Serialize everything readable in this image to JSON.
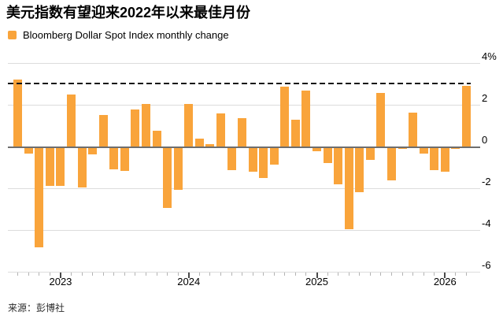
{
  "header": {
    "title": "美元指数有望迎来2022年以来最佳月份",
    "legend_label": "Bloomberg Dollar Spot Index monthly change"
  },
  "footer": {
    "source": "来源：彭博社"
  },
  "colors": {
    "bar": "#F9A43B",
    "grid": "#DCDCDC",
    "zero_line": "#6E6E6E",
    "reference_line": "#151515",
    "tick_minor": "#B3B3B3",
    "tick_major": "#4A4A4A",
    "text": "#000000"
  },
  "chart_data": {
    "type": "bar",
    "title": "美元指数有望迎来2022年以来最佳月份",
    "legend": [
      "Bloomberg Dollar Spot Index monthly change"
    ],
    "unit": "%",
    "grid": "horizontal",
    "legend_position": "top-left",
    "ylim": [
      -6.4,
      4.3
    ],
    "y_ticks": [
      {
        "label": "4%",
        "value": 4
      },
      {
        "label": "2",
        "value": 2
      },
      {
        "label": "0",
        "value": 0
      },
      {
        "label": "-2",
        "value": -2
      },
      {
        "label": "-4",
        "value": -4
      },
      {
        "label": "-6",
        "value": -6
      }
    ],
    "x_tick_labels": [
      "2023",
      "2024",
      "2025",
      "2026"
    ],
    "reference_line": {
      "style": "dashed",
      "value": 3.05
    },
    "x": [
      "2022-09",
      "2022-10",
      "2022-11",
      "2022-12",
      "2023-01",
      "2023-02",
      "2023-03",
      "2023-04",
      "2023-05",
      "2023-06",
      "2023-07",
      "2023-08",
      "2023-09",
      "2023-10",
      "2023-11",
      "2023-12",
      "2024-01",
      "2024-02",
      "2024-03",
      "2024-04",
      "2024-05",
      "2024-06",
      "2024-07",
      "2024-08",
      "2024-09",
      "2024-10",
      "2024-11",
      "2024-12",
      "2025-01",
      "2025-02",
      "2025-03",
      "2025-04",
      "2025-05",
      "2025-06",
      "2025-07",
      "2025-08",
      "2025-09",
      "2025-10",
      "2025-11",
      "2025-12",
      "2026-01",
      "2026-02",
      "2026-03"
    ],
    "values": [
      3.25,
      -0.3,
      -4.8,
      -1.85,
      -1.85,
      2.5,
      -1.95,
      -0.35,
      1.55,
      -1.05,
      -1.15,
      1.8,
      2.05,
      0.8,
      -2.9,
      -2.05,
      2.05,
      0.4,
      0.15,
      1.6,
      -1.1,
      1.4,
      -1.2,
      -1.5,
      -0.85,
      2.9,
      1.3,
      2.7,
      -0.2,
      -0.75,
      -1.8,
      -3.95,
      -2.15,
      -0.6,
      2.6,
      -1.6,
      -0.1,
      1.65,
      -0.3,
      -1.1,
      -1.2,
      -0.1,
      2.95
    ]
  }
}
